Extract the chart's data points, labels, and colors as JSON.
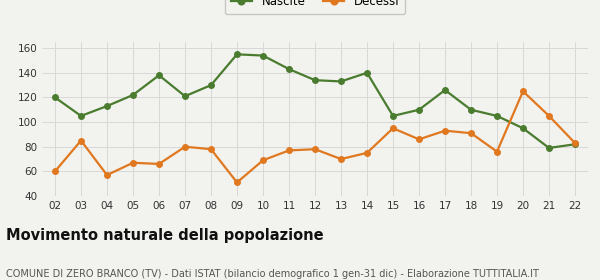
{
  "years": [
    "02",
    "03",
    "04",
    "05",
    "06",
    "07",
    "08",
    "09",
    "10",
    "11",
    "12",
    "13",
    "14",
    "15",
    "16",
    "17",
    "18",
    "19",
    "20",
    "21",
    "22"
  ],
  "nascite": [
    120,
    105,
    113,
    122,
    138,
    121,
    130,
    155,
    154,
    143,
    134,
    133,
    140,
    105,
    110,
    126,
    110,
    105,
    95,
    79,
    82
  ],
  "decessi": [
    60,
    85,
    57,
    67,
    66,
    80,
    78,
    51,
    69,
    77,
    78,
    70,
    75,
    95,
    86,
    93,
    91,
    76,
    125,
    105,
    83
  ],
  "nascite_color": "#4a7c2f",
  "decessi_color": "#e07820",
  "background_color": "#f2f2ee",
  "title": "Movimento naturale della popolazione",
  "subtitle": "COMUNE DI ZERO BRANCO (TV) - Dati ISTAT (bilancio demografico 1 gen-31 dic) - Elaborazione TUTTITALIA.IT",
  "legend_nascite": "Nascite",
  "legend_decessi": "Decessi",
  "ylim": [
    40,
    165
  ],
  "yticks": [
    40,
    60,
    80,
    100,
    120,
    140,
    160
  ],
  "grid_color": "#d8d8d8",
  "line_width": 1.6,
  "marker_size": 4,
  "title_fontsize": 10.5,
  "subtitle_fontsize": 7.0,
  "legend_fontsize": 8.5,
  "tick_fontsize": 7.5
}
